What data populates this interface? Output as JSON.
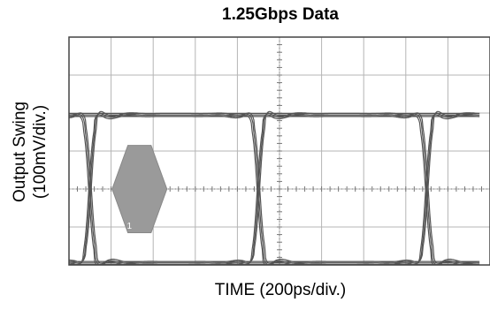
{
  "chart_data": {
    "type": "line",
    "title": "1.25Gbps Data",
    "xlabel": "TIME (200ps/div.)",
    "ylabel_line1": "Output Swing",
    "ylabel_line2": "(100mV/div.)",
    "x_unit": "ps",
    "y_unit": "mV",
    "x_per_div": 200,
    "y_per_div": 100,
    "xlim": [
      0,
      1900
    ],
    "ylim": [
      -400,
      400
    ],
    "grid": true,
    "bit_period_ps": 800,
    "crossings_ps": [
      100,
      900,
      1700
    ],
    "eye_high_mv": 195,
    "eye_low_mv": -195,
    "overshoot_mv": 20,
    "mask": {
      "label": "1",
      "points": [
        [
          205,
          0
        ],
        [
          280,
          115
        ],
        [
          390,
          115
        ],
        [
          465,
          0
        ],
        [
          390,
          -115
        ],
        [
          280,
          -115
        ]
      ]
    },
    "colors": {
      "trace": "#555555",
      "mask": "#9a9a9a",
      "grid": "#b5b5b5",
      "frame": "#444444"
    }
  }
}
